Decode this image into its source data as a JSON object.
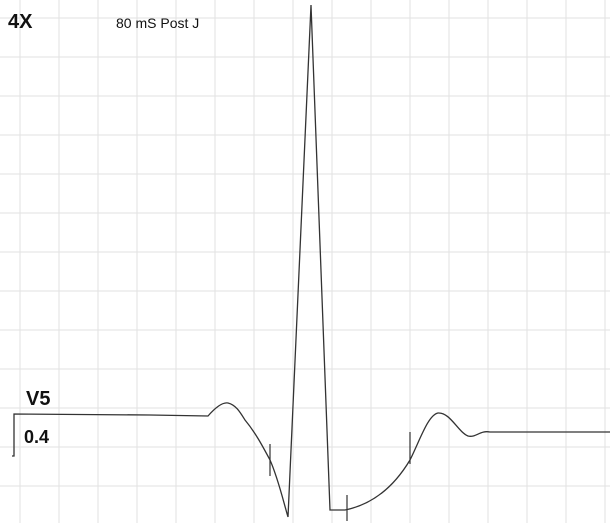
{
  "header": {
    "gain": "4X",
    "label": "80 mS Post J"
  },
  "lead": {
    "name": "V5",
    "value": "0.4"
  }
}
